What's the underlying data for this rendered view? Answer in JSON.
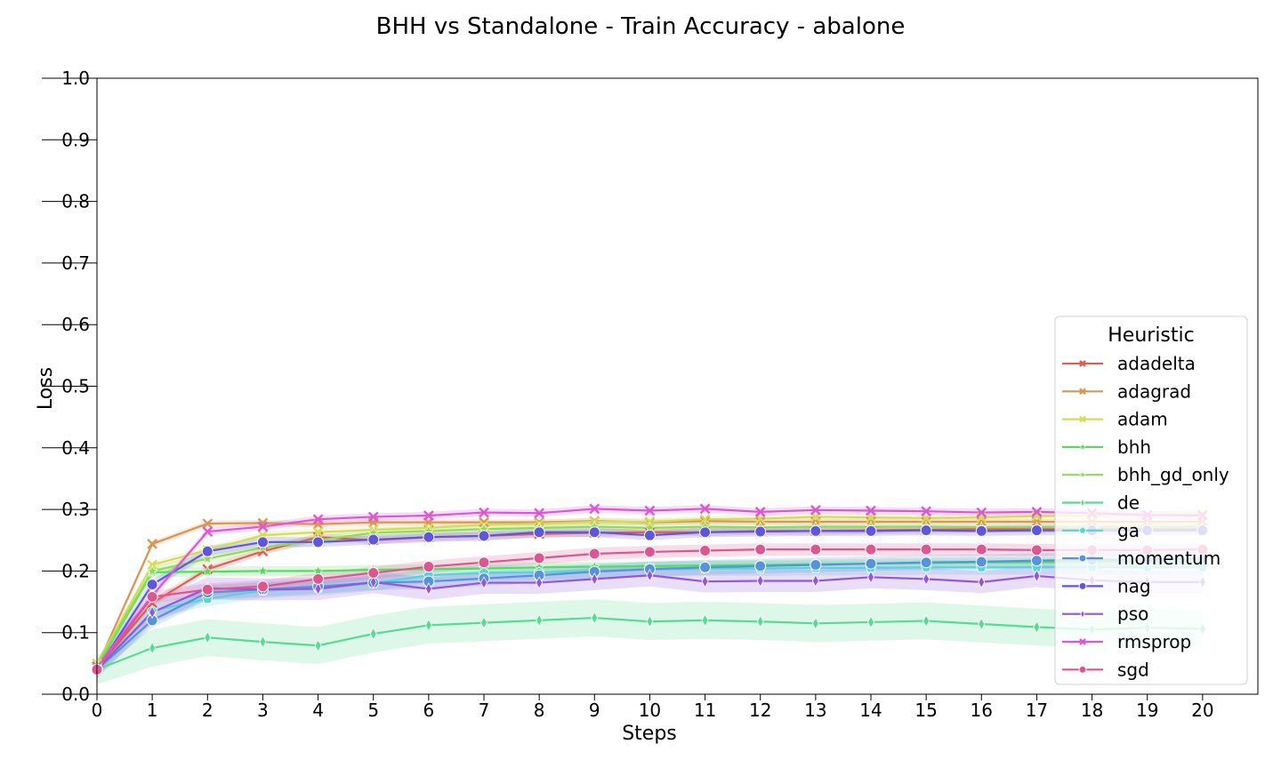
{
  "chart_data": {
    "type": "line",
    "title": "BHH vs Standalone - Train Accuracy - abalone",
    "xlabel": "Steps",
    "ylabel": "Loss",
    "xlim": [
      0,
      21
    ],
    "ylim": [
      0.0,
      1.0
    ],
    "x": [
      0,
      1,
      2,
      3,
      4,
      5,
      6,
      7,
      8,
      9,
      10,
      11,
      12,
      13,
      14,
      15,
      16,
      17,
      18,
      19,
      20
    ],
    "x_ticks": [
      "0",
      "1",
      "2",
      "3",
      "4",
      "5",
      "6",
      "7",
      "8",
      "9",
      "10",
      "11",
      "12",
      "13",
      "14",
      "15",
      "16",
      "17",
      "18",
      "19",
      "20"
    ],
    "y_ticks": [
      "0.0",
      "0.1",
      "0.2",
      "0.3",
      "0.4",
      "0.5",
      "0.6",
      "0.7",
      "0.8",
      "0.9",
      "1.0"
    ],
    "y_tick_values": [
      0,
      0.1,
      0.2,
      0.3,
      0.4,
      0.5,
      0.6,
      0.7,
      0.8,
      0.9,
      1.0
    ],
    "legend_title": "Heuristic",
    "legend_position": "lower right",
    "grid": false,
    "series": [
      {
        "name": "adadelta",
        "color": "#db5f57",
        "marker": "x",
        "values": [
          0.042,
          0.148,
          0.203,
          0.232,
          0.255,
          0.25,
          0.255,
          0.257,
          0.26,
          0.262,
          0.263,
          0.263,
          0.265,
          0.265,
          0.266,
          0.267,
          0.268,
          0.268,
          0.268,
          0.269,
          0.269
        ],
        "ci": 0.006
      },
      {
        "name": "adagrad",
        "color": "#db9357",
        "marker": "x",
        "values": [
          0.045,
          0.244,
          0.277,
          0.278,
          0.276,
          0.279,
          0.279,
          0.279,
          0.279,
          0.281,
          0.279,
          0.281,
          0.28,
          0.28,
          0.28,
          0.28,
          0.28,
          0.28,
          0.28,
          0.28,
          0.28
        ],
        "ci": 0.005
      },
      {
        "name": "adam",
        "color": "#d3db57",
        "marker": "x",
        "values": [
          0.05,
          0.21,
          0.234,
          0.258,
          0.263,
          0.267,
          0.27,
          0.275,
          0.277,
          0.28,
          0.28,
          0.284,
          0.285,
          0.288,
          0.287,
          0.286,
          0.287,
          0.289,
          0.29,
          0.291,
          0.292
        ],
        "ci": 0.006
      },
      {
        "name": "bhh",
        "color": "#57db5f",
        "marker": "*",
        "values": [
          0.045,
          0.198,
          0.199,
          0.2,
          0.2,
          0.202,
          0.203,
          0.204,
          0.206,
          0.207,
          0.208,
          0.209,
          0.21,
          0.211,
          0.212,
          0.213,
          0.214,
          0.214,
          0.215,
          0.215,
          0.215
        ],
        "ci": 0.008
      },
      {
        "name": "bhh_gd_only",
        "color": "#8fdb57",
        "marker": "*",
        "values": [
          0.048,
          0.2,
          0.22,
          0.238,
          0.25,
          0.262,
          0.265,
          0.268,
          0.27,
          0.272,
          0.27,
          0.272,
          0.271,
          0.272,
          0.272,
          0.272,
          0.271,
          0.271,
          0.271,
          0.271,
          0.271
        ],
        "ci": 0.008
      },
      {
        "name": "de",
        "color": "#57db93",
        "marker": "d",
        "values": [
          0.04,
          0.075,
          0.092,
          0.085,
          0.079,
          0.098,
          0.112,
          0.116,
          0.12,
          0.124,
          0.118,
          0.12,
          0.118,
          0.115,
          0.117,
          0.119,
          0.114,
          0.109,
          0.105,
          0.108,
          0.106
        ],
        "ci": 0.03
      },
      {
        "name": "ga",
        "color": "#57d3db",
        "marker": "p",
        "values": [
          0.04,
          0.135,
          0.155,
          0.168,
          0.172,
          0.18,
          0.193,
          0.197,
          0.198,
          0.2,
          0.203,
          0.204,
          0.204,
          0.205,
          0.205,
          0.206,
          0.206,
          0.206,
          0.206,
          0.206,
          0.206
        ],
        "ci": 0.012
      },
      {
        "name": "momentum",
        "color": "#5793db",
        "marker": "o",
        "values": [
          0.04,
          0.12,
          0.165,
          0.17,
          0.175,
          0.181,
          0.183,
          0.188,
          0.193,
          0.199,
          0.203,
          0.206,
          0.208,
          0.21,
          0.212,
          0.214,
          0.215,
          0.217,
          0.218,
          0.219,
          0.22
        ],
        "ci": 0.012
      },
      {
        "name": "nag",
        "color": "#5f57db",
        "marker": "o",
        "values": [
          0.04,
          0.178,
          0.232,
          0.247,
          0.247,
          0.251,
          0.255,
          0.257,
          0.263,
          0.263,
          0.258,
          0.263,
          0.264,
          0.265,
          0.265,
          0.266,
          0.265,
          0.266,
          0.266,
          0.266,
          0.266
        ],
        "ci": 0.008
      },
      {
        "name": "pso",
        "color": "#9357db",
        "marker": "d",
        "values": [
          0.04,
          0.133,
          0.172,
          0.17,
          0.171,
          0.182,
          0.171,
          0.181,
          0.181,
          0.187,
          0.193,
          0.183,
          0.184,
          0.184,
          0.19,
          0.187,
          0.182,
          0.192,
          0.185,
          0.182,
          0.182
        ],
        "ci": 0.018
      },
      {
        "name": "rmsprop",
        "color": "#db57d3",
        "marker": "x",
        "values": [
          0.045,
          0.16,
          0.264,
          0.272,
          0.284,
          0.288,
          0.29,
          0.295,
          0.294,
          0.301,
          0.298,
          0.301,
          0.296,
          0.299,
          0.298,
          0.297,
          0.295,
          0.296,
          0.294,
          0.291,
          0.29
        ],
        "ci": 0.006
      },
      {
        "name": "sgd",
        "color": "#db578f",
        "marker": "o",
        "values": [
          0.04,
          0.158,
          0.17,
          0.175,
          0.187,
          0.197,
          0.207,
          0.214,
          0.221,
          0.228,
          0.231,
          0.233,
          0.235,
          0.235,
          0.235,
          0.235,
          0.235,
          0.234,
          0.234,
          0.234,
          0.235
        ],
        "ci": 0.01
      }
    ]
  }
}
